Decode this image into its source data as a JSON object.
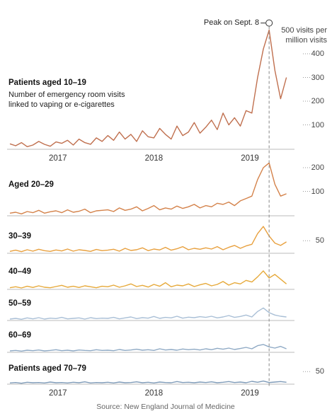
{
  "source": "Source: New England Journal of Medicine",
  "chart_data": [
    {
      "type": "line",
      "title": "Patients aged 10–19",
      "subtitle": "Number of emergency room visits linked to vaping or e-cigarettes",
      "annotation": "Peak on Sept. 8",
      "color": "#c0704f",
      "x": [
        2017,
        2017.06,
        2017.12,
        2017.18,
        2017.24,
        2017.3,
        2017.36,
        2017.42,
        2017.48,
        2017.54,
        2017.6,
        2017.66,
        2017.72,
        2017.78,
        2017.84,
        2017.9,
        2017.96,
        2018.02,
        2018.08,
        2018.14,
        2018.2,
        2018.26,
        2018.32,
        2018.38,
        2018.44,
        2018.5,
        2018.56,
        2018.62,
        2018.68,
        2018.74,
        2018.8,
        2018.86,
        2018.92,
        2018.98,
        2019.04,
        2019.1,
        2019.16,
        2019.22,
        2019.28,
        2019.34,
        2019.4,
        2019.46,
        2019.52,
        2019.58,
        2019.64,
        2019.7,
        2019.76,
        2019.82,
        2019.88
      ],
      "values": [
        20,
        12,
        25,
        8,
        15,
        30,
        18,
        10,
        28,
        22,
        35,
        15,
        40,
        25,
        18,
        45,
        30,
        55,
        35,
        70,
        40,
        60,
        30,
        75,
        50,
        45,
        85,
        60,
        40,
        95,
        55,
        70,
        110,
        65,
        90,
        120,
        80,
        150,
        100,
        130,
        95,
        160,
        150,
        300,
        420,
        500,
        330,
        210,
        300
      ],
      "xlim": [
        2017,
        2019.92
      ],
      "ylim": [
        0,
        520
      ],
      "yticks": [
        100,
        200,
        300,
        400,
        {
          "value": 500,
          "label": "500 visits per million visits"
        }
      ],
      "xticks": [
        {
          "value": 2017.5,
          "label": "2017"
        },
        {
          "value": 2018.5,
          "label": "2018"
        },
        {
          "value": 2019.5,
          "label": "2019"
        }
      ]
    },
    {
      "type": "line",
      "title": "Aged 20–29",
      "color": "#d4824a",
      "x": [
        2017,
        2017.06,
        2017.12,
        2017.18,
        2017.24,
        2017.3,
        2017.36,
        2017.42,
        2017.48,
        2017.54,
        2017.6,
        2017.66,
        2017.72,
        2017.78,
        2017.84,
        2017.9,
        2017.96,
        2018.02,
        2018.08,
        2018.14,
        2018.2,
        2018.26,
        2018.32,
        2018.38,
        2018.44,
        2018.5,
        2018.56,
        2018.62,
        2018.68,
        2018.74,
        2018.8,
        2018.86,
        2018.92,
        2018.98,
        2019.04,
        2019.1,
        2019.16,
        2019.22,
        2019.28,
        2019.34,
        2019.4,
        2019.46,
        2019.52,
        2019.58,
        2019.64,
        2019.7,
        2019.76,
        2019.82,
        2019.88
      ],
      "values": [
        8,
        12,
        5,
        15,
        10,
        20,
        8,
        14,
        18,
        10,
        22,
        12,
        16,
        25,
        10,
        18,
        20,
        22,
        15,
        30,
        20,
        25,
        35,
        18,
        28,
        40,
        22,
        30,
        25,
        38,
        28,
        35,
        45,
        30,
        40,
        35,
        50,
        45,
        55,
        40,
        60,
        70,
        80,
        150,
        200,
        220,
        130,
        80,
        90
      ],
      "xlim": [
        2017,
        2019.92
      ],
      "ylim": [
        0,
        240
      ],
      "yticks": [
        100,
        200
      ]
    },
    {
      "type": "line",
      "title": "30–39",
      "color": "#e8a03e",
      "x": [
        2017,
        2017.06,
        2017.12,
        2017.18,
        2017.24,
        2017.3,
        2017.36,
        2017.42,
        2017.48,
        2017.54,
        2017.6,
        2017.66,
        2017.72,
        2017.78,
        2017.84,
        2017.9,
        2017.96,
        2018.02,
        2018.08,
        2018.14,
        2018.2,
        2018.26,
        2018.32,
        2018.38,
        2018.44,
        2018.5,
        2018.56,
        2018.62,
        2018.68,
        2018.74,
        2018.8,
        2018.86,
        2018.92,
        2018.98,
        2019.04,
        2019.1,
        2019.16,
        2019.22,
        2019.28,
        2019.34,
        2019.4,
        2019.46,
        2019.52,
        2019.58,
        2019.64,
        2019.7,
        2019.76,
        2019.82,
        2019.88
      ],
      "values": [
        5,
        10,
        4,
        12,
        6,
        14,
        8,
        5,
        11,
        7,
        15,
        6,
        12,
        9,
        5,
        13,
        8,
        10,
        14,
        6,
        18,
        9,
        12,
        20,
        8,
        15,
        11,
        22,
        10,
        16,
        25,
        12,
        18,
        14,
        20,
        15,
        25,
        12,
        22,
        30,
        18,
        28,
        35,
        80,
        110,
        70,
        40,
        30,
        45
      ],
      "xlim": [
        2017,
        2019.92
      ],
      "ylim": [
        0,
        130
      ],
      "yticks": [
        50
      ]
    },
    {
      "type": "line",
      "title": "40–49",
      "color": "#e6a93a",
      "x": [
        2017,
        2017.06,
        2017.12,
        2017.18,
        2017.24,
        2017.3,
        2017.36,
        2017.42,
        2017.48,
        2017.54,
        2017.6,
        2017.66,
        2017.72,
        2017.78,
        2017.84,
        2017.9,
        2017.96,
        2018.02,
        2018.08,
        2018.14,
        2018.2,
        2018.26,
        2018.32,
        2018.38,
        2018.44,
        2018.5,
        2018.56,
        2018.62,
        2018.68,
        2018.74,
        2018.8,
        2018.86,
        2018.92,
        2018.98,
        2019.04,
        2019.1,
        2019.16,
        2019.22,
        2019.28,
        2019.34,
        2019.4,
        2019.46,
        2019.52,
        2019.58,
        2019.64,
        2019.7,
        2019.76,
        2019.82,
        2019.88
      ],
      "values": [
        4,
        8,
        3,
        10,
        5,
        12,
        6,
        4,
        9,
        14,
        6,
        10,
        5,
        12,
        8,
        4,
        10,
        8,
        15,
        6,
        12,
        20,
        9,
        14,
        7,
        18,
        10,
        25,
        8,
        15,
        12,
        20,
        9,
        16,
        22,
        12,
        18,
        30,
        15,
        25,
        20,
        35,
        28,
        50,
        75,
        45,
        60,
        40,
        20
      ],
      "xlim": [
        2017,
        2019.92
      ],
      "ylim": [
        0,
        120
      ],
      "yticks": []
    },
    {
      "type": "line",
      "title": "50–59",
      "color": "#a9bfd6",
      "x": [
        2017,
        2017.06,
        2017.12,
        2017.18,
        2017.24,
        2017.3,
        2017.36,
        2017.42,
        2017.48,
        2017.54,
        2017.6,
        2017.66,
        2017.72,
        2017.78,
        2017.84,
        2017.9,
        2017.96,
        2018.02,
        2018.08,
        2018.14,
        2018.2,
        2018.26,
        2018.32,
        2018.38,
        2018.44,
        2018.5,
        2018.56,
        2018.62,
        2018.68,
        2018.74,
        2018.8,
        2018.86,
        2018.92,
        2018.98,
        2019.04,
        2019.1,
        2019.16,
        2019.22,
        2019.28,
        2019.34,
        2019.4,
        2019.46,
        2019.52,
        2019.58,
        2019.64,
        2019.7,
        2019.76,
        2019.82,
        2019.88
      ],
      "values": [
        3,
        6,
        2,
        8,
        4,
        9,
        3,
        7,
        5,
        10,
        4,
        6,
        8,
        3,
        9,
        5,
        7,
        6,
        10,
        4,
        8,
        12,
        5,
        9,
        7,
        14,
        6,
        10,
        8,
        15,
        7,
        11,
        9,
        13,
        10,
        15,
        8,
        12,
        18,
        10,
        14,
        20,
        12,
        35,
        50,
        30,
        20,
        15,
        12
      ],
      "xlim": [
        2017,
        2019.92
      ],
      "ylim": [
        0,
        110
      ],
      "yticks": []
    },
    {
      "type": "line",
      "title": "60–69",
      "color": "#8ea9c4",
      "x": [
        2017,
        2017.06,
        2017.12,
        2017.18,
        2017.24,
        2017.3,
        2017.36,
        2017.42,
        2017.48,
        2017.54,
        2017.6,
        2017.66,
        2017.72,
        2017.78,
        2017.84,
        2017.9,
        2017.96,
        2018.02,
        2018.08,
        2018.14,
        2018.2,
        2018.26,
        2018.32,
        2018.38,
        2018.44,
        2018.5,
        2018.56,
        2018.62,
        2018.68,
        2018.74,
        2018.8,
        2018.86,
        2018.92,
        2018.98,
        2019.04,
        2019.1,
        2019.16,
        2019.22,
        2019.28,
        2019.34,
        2019.4,
        2019.46,
        2019.52,
        2019.58,
        2019.64,
        2019.7,
        2019.76,
        2019.82,
        2019.88
      ],
      "values": [
        3,
        5,
        2,
        6,
        4,
        7,
        3,
        5,
        8,
        4,
        6,
        3,
        7,
        5,
        4,
        8,
        5,
        6,
        4,
        9,
        5,
        7,
        10,
        6,
        8,
        5,
        12,
        7,
        9,
        6,
        11,
        8,
        10,
        7,
        12,
        8,
        14,
        10,
        15,
        9,
        13,
        18,
        12,
        25,
        30,
        20,
        15,
        22,
        12
      ],
      "xlim": [
        2017,
        2019.92
      ],
      "ylim": [
        0,
        110
      ],
      "yticks": []
    },
    {
      "type": "line",
      "title": "Patients aged 70–79",
      "color": "#7f9bb8",
      "x": [
        2017,
        2017.06,
        2017.12,
        2017.18,
        2017.24,
        2017.3,
        2017.36,
        2017.42,
        2017.48,
        2017.54,
        2017.6,
        2017.66,
        2017.72,
        2017.78,
        2017.84,
        2017.9,
        2017.96,
        2018.02,
        2018.08,
        2018.14,
        2018.2,
        2018.26,
        2018.32,
        2018.38,
        2018.44,
        2018.5,
        2018.56,
        2018.62,
        2018.68,
        2018.74,
        2018.8,
        2018.86,
        2018.92,
        2018.98,
        2019.04,
        2019.1,
        2019.16,
        2019.22,
        2019.28,
        2019.34,
        2019.4,
        2019.46,
        2019.52,
        2019.58,
        2019.64,
        2019.7,
        2019.76,
        2019.82,
        2019.88
      ],
      "values": [
        2,
        4,
        1,
        5,
        3,
        4,
        2,
        6,
        3,
        4,
        2,
        5,
        3,
        7,
        2,
        4,
        3,
        5,
        2,
        6,
        3,
        4,
        7,
        3,
        5,
        2,
        6,
        4,
        3,
        8,
        4,
        5,
        3,
        6,
        4,
        7,
        3,
        5,
        8,
        4,
        6,
        3,
        9,
        5,
        10,
        4,
        6,
        8,
        5
      ],
      "xlim": [
        2017,
        2019.92
      ],
      "ylim": [
        0,
        110
      ],
      "yticks": [
        50
      ],
      "xticks": [
        {
          "value": 2017.5,
          "label": "2017"
        },
        {
          "value": 2018.5,
          "label": "2018"
        },
        {
          "value": 2019.5,
          "label": "2019"
        }
      ]
    }
  ]
}
